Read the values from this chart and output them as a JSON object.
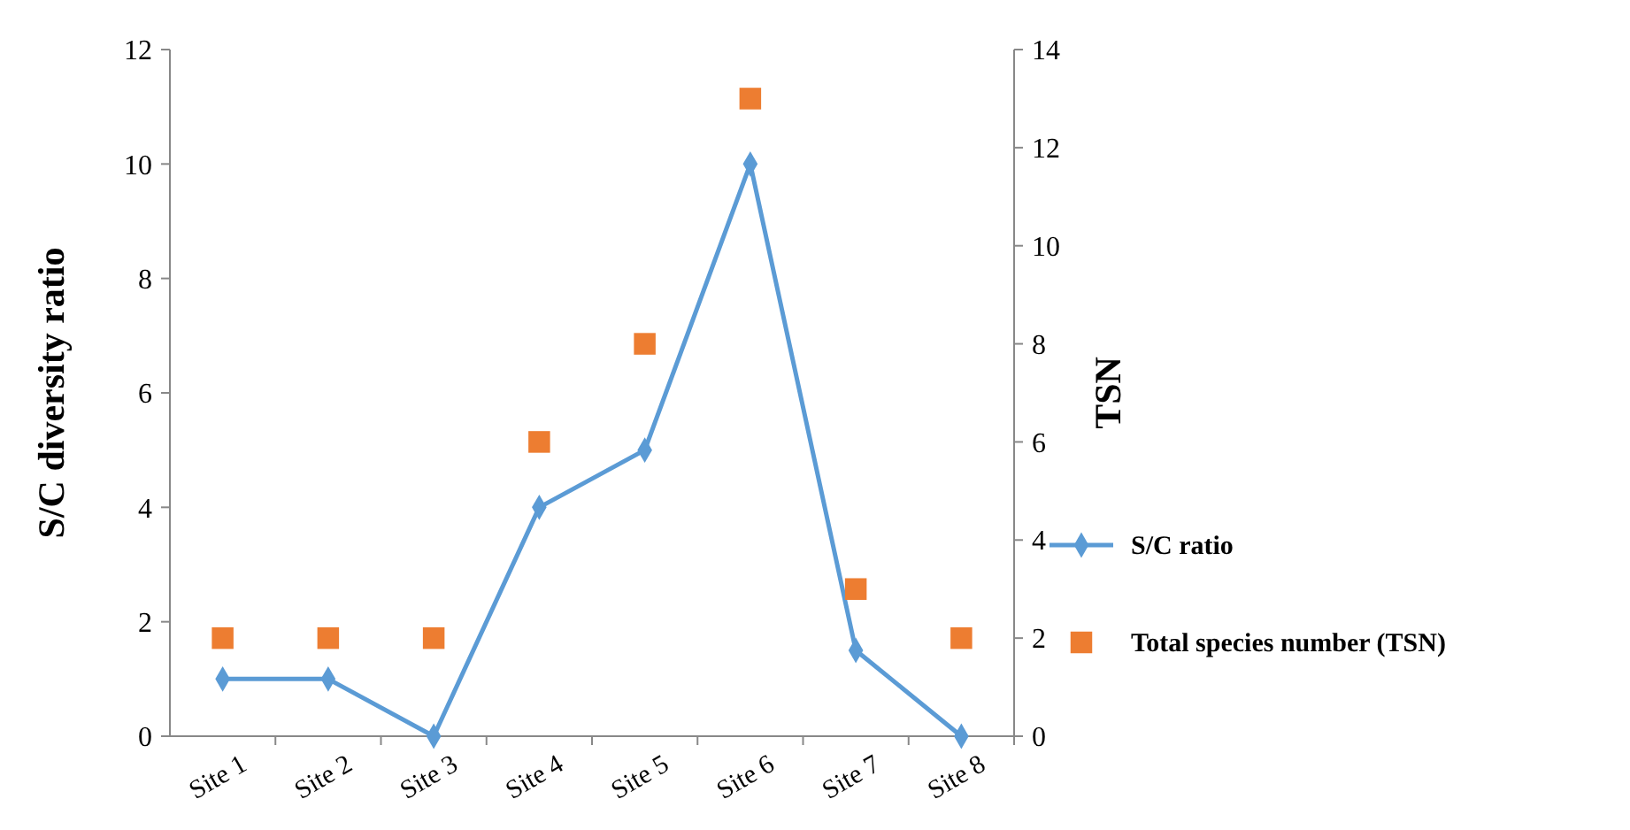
{
  "chart_data": {
    "type": "line",
    "ylabel": "S/C diversity  ratio",
    "y2label": "TSN",
    "categories": [
      "Site 1",
      "Site 2",
      "Site 3",
      "Site 4",
      "Site 5",
      "Site 6",
      "Site 7",
      "Site 8"
    ],
    "series": [
      {
        "name": "S/C ratio",
        "color": "#5b9bd5",
        "marker": "diamond",
        "values": [
          1,
          1,
          0,
          4,
          5,
          10,
          1.5,
          0
        ]
      },
      {
        "name": "Total species number (TSN)",
        "type": "scatter",
        "axis": "y2",
        "color": "#ed7d31",
        "marker": "square",
        "values": [
          2,
          2,
          2,
          6,
          8,
          13,
          3,
          2
        ]
      }
    ],
    "ylim": [
      0,
      12
    ],
    "yticks": [
      0,
      2,
      4,
      6,
      8,
      10,
      12
    ],
    "y2lim": [
      0,
      14
    ],
    "y2ticks": [
      0,
      2,
      4,
      6,
      8,
      10,
      12,
      14
    ],
    "grid": false,
    "legend": "right"
  }
}
